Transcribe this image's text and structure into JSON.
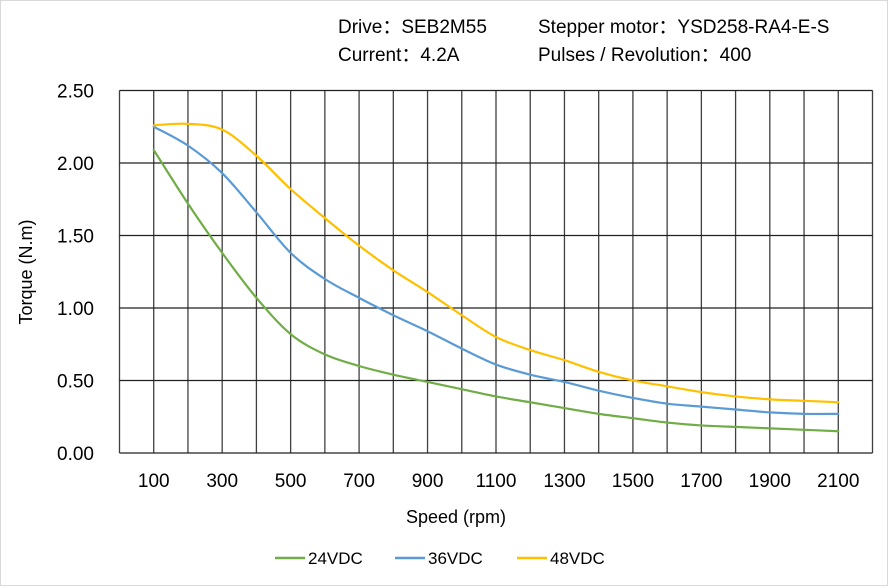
{
  "chart_data": {
    "type": "line",
    "header": {
      "line1": [
        "Drive：SEB2M55",
        "Stepper  motor：YSD258-RA4-E-S"
      ],
      "line2": [
        "Current：4.2A",
        "Pulses / Revolution：400"
      ]
    },
    "xlabel": "Speed  (rpm)",
    "ylabel": "Torque (N.m)",
    "xlim": [
      0,
      2200
    ],
    "ylim": [
      0,
      2.5
    ],
    "x_ticks": [
      100,
      300,
      500,
      700,
      900,
      1100,
      1300,
      1500,
      1700,
      1900,
      2100
    ],
    "y_ticks": [
      "0.00",
      "0.50",
      "1.00",
      "1.50",
      "2.00",
      "2.50"
    ],
    "grid": {
      "vertical_step": 100,
      "horizontal_step": 0.5,
      "on": true
    },
    "legend_placement": "bottom",
    "x": [
      100,
      200,
      300,
      400,
      500,
      600,
      700,
      800,
      900,
      1000,
      1100,
      1200,
      1300,
      1400,
      1500,
      1600,
      1700,
      1800,
      1900,
      2000,
      2100
    ],
    "series": [
      {
        "name": "24VDC",
        "color": "#70ad47",
        "values": [
          2.09,
          1.72,
          1.38,
          1.07,
          0.82,
          0.68,
          0.6,
          0.54,
          0.49,
          0.44,
          0.39,
          0.35,
          0.31,
          0.27,
          0.24,
          0.21,
          0.19,
          0.18,
          0.17,
          0.16,
          0.15
        ]
      },
      {
        "name": "36VDC",
        "color": "#5b9bd5",
        "values": [
          2.25,
          2.12,
          1.93,
          1.66,
          1.38,
          1.2,
          1.07,
          0.95,
          0.84,
          0.72,
          0.61,
          0.54,
          0.49,
          0.43,
          0.38,
          0.34,
          0.32,
          0.3,
          0.28,
          0.27,
          0.27
        ]
      },
      {
        "name": "48VDC",
        "color": "#ffc000",
        "values": [
          2.26,
          2.27,
          2.23,
          2.05,
          1.82,
          1.62,
          1.43,
          1.26,
          1.11,
          0.95,
          0.8,
          0.71,
          0.64,
          0.56,
          0.5,
          0.46,
          0.42,
          0.39,
          0.37,
          0.36,
          0.35
        ]
      }
    ]
  }
}
